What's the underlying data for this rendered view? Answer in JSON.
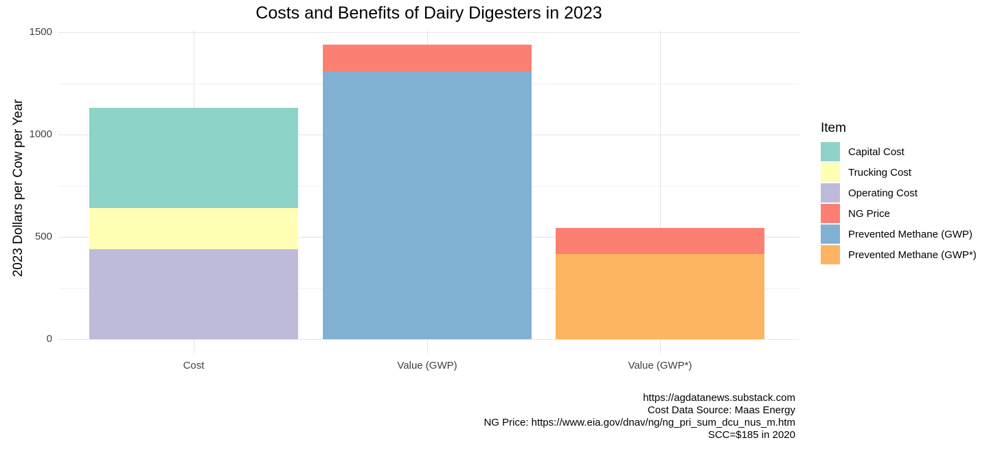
{
  "chart_data": {
    "type": "bar",
    "stacked": true,
    "title": "Costs and Benefits of Dairy Digesters in 2023",
    "xlabel": "",
    "ylabel": "2023 Dollars per Cow per Year",
    "ylim": [
      0,
      1500
    ],
    "yticks": [
      0,
      500,
      1000,
      1500
    ],
    "minor_gridlines": [
      250,
      750,
      1250
    ],
    "grid_on": true,
    "categories": [
      "Cost",
      "Value (GWP)",
      "Value (GWP*)"
    ],
    "legend": {
      "title": "Item",
      "position": "right"
    },
    "series": [
      {
        "name": "Capital Cost",
        "color": "#8DD3C7",
        "values": [
          490,
          0,
          0
        ]
      },
      {
        "name": "Trucking Cost",
        "color": "#FFFFB3",
        "values": [
          200,
          0,
          0
        ]
      },
      {
        "name": "Operating Cost",
        "color": "#BEBADA",
        "values": [
          440,
          0,
          0
        ]
      },
      {
        "name": "NG Price",
        "color": "#FB8072",
        "values": [
          0,
          128,
          130
        ]
      },
      {
        "name": "Prevented Methane (GWP)",
        "color": "#80B1D3",
        "values": [
          0,
          1310,
          0
        ]
      },
      {
        "name": "Prevented Methane (GWP*)",
        "color": "#FDB462",
        "values": [
          0,
          0,
          415
        ]
      }
    ],
    "bar_totals": [
      1130,
      1438,
      545
    ],
    "caption_lines": [
      "https://agdatanews.substack.com",
      "Cost Data Source: Maas Energy",
      "NG Price: https://www.eia.gov/dnav/ng/ng_pri_sum_dcu_nus_m.htm",
      "SCC=$185 in 2020"
    ],
    "colors": {
      "background": "#FFFFFF",
      "grid_major": "#E4E4E4",
      "grid_minor": "#F1F1F1",
      "axis_text": "#404040",
      "text": "#000000"
    }
  }
}
